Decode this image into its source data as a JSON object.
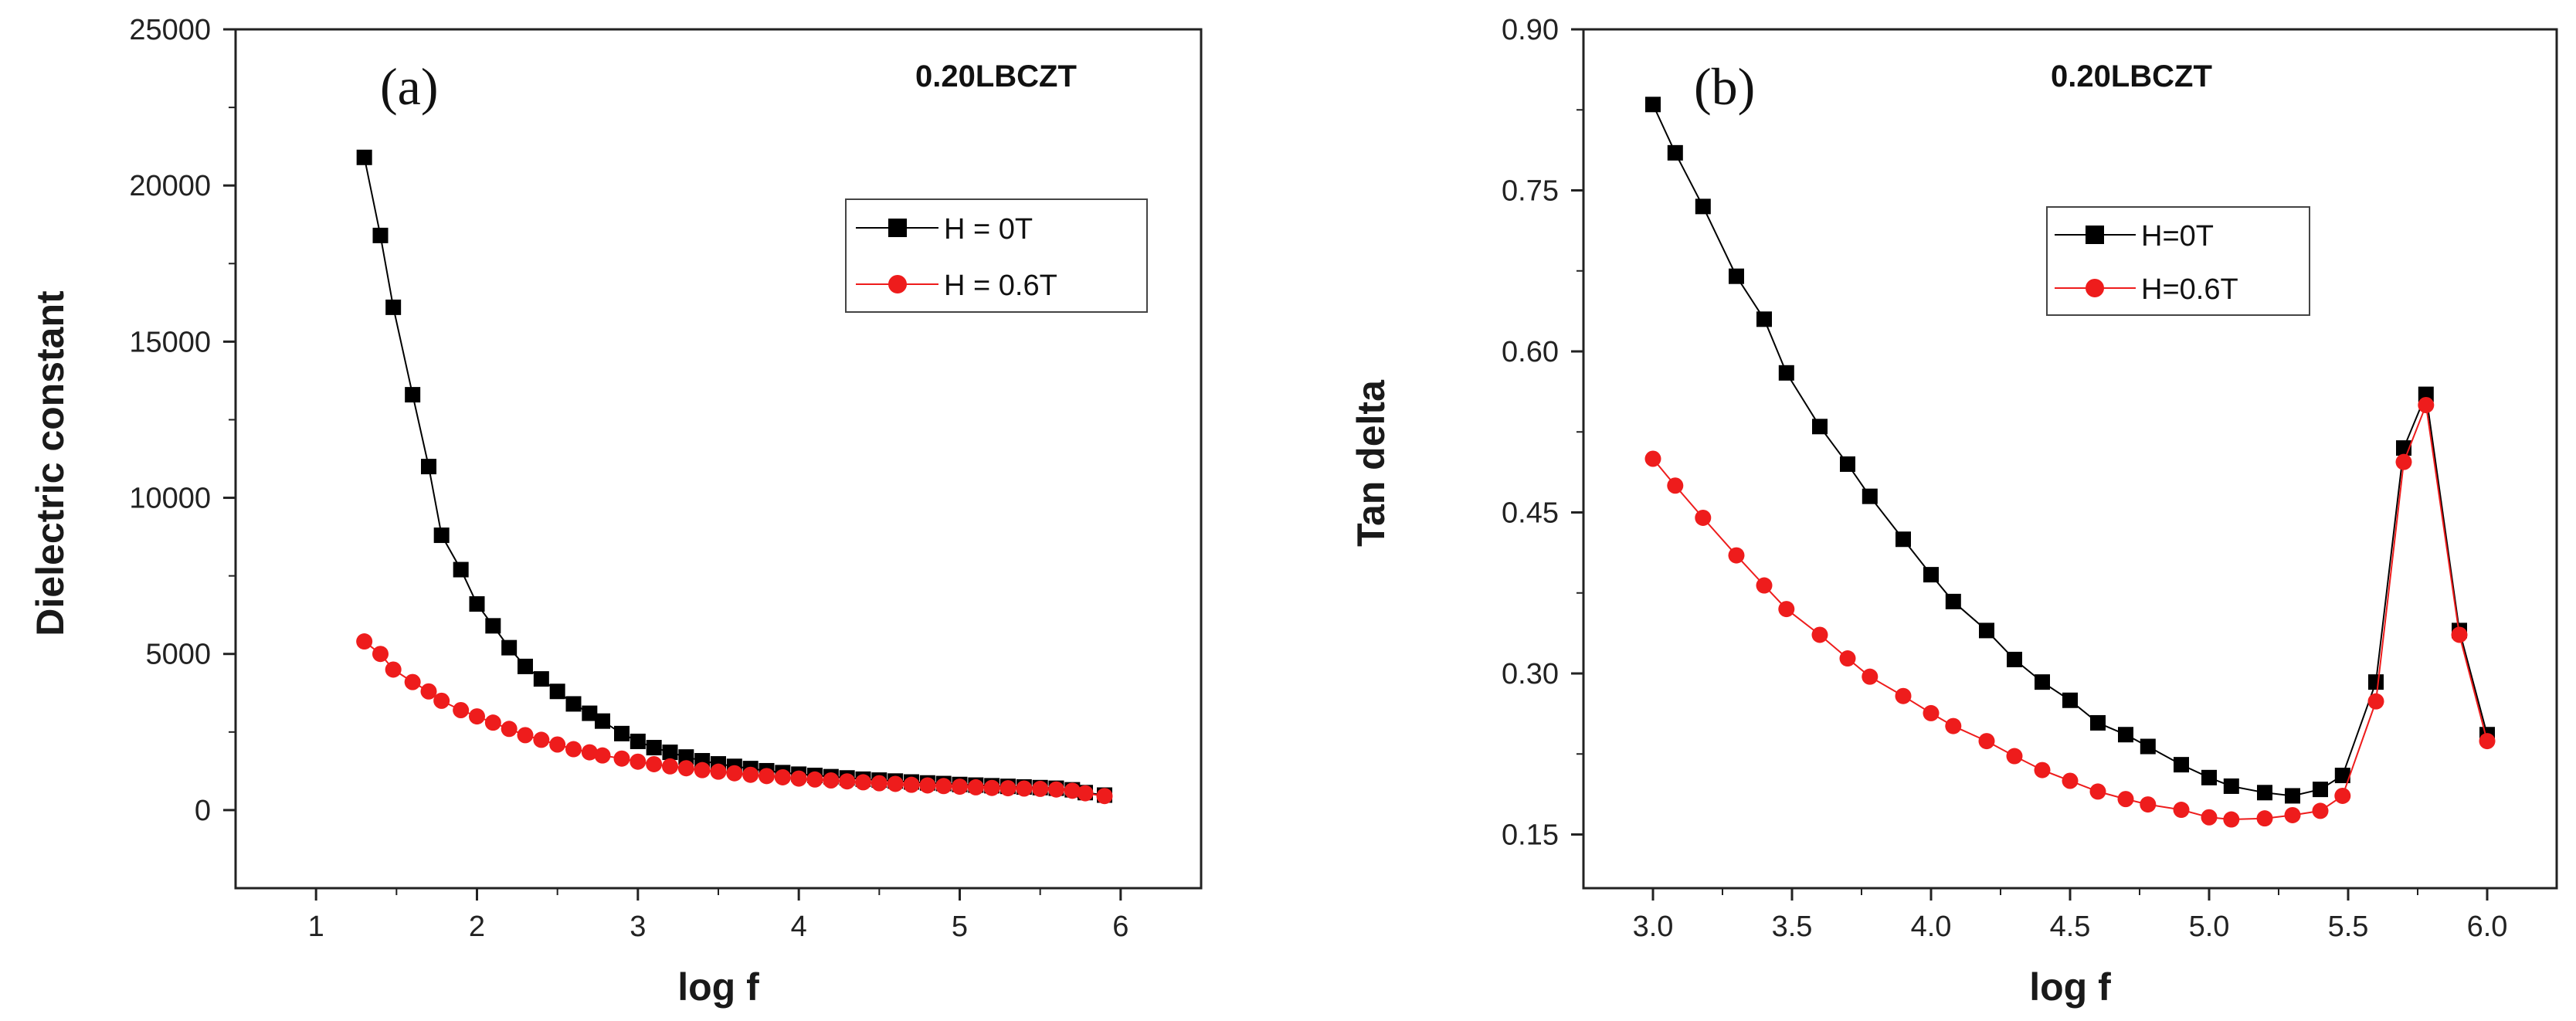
{
  "chart_data": [
    {
      "type": "line",
      "panel_label": "(a)",
      "title": "0.20LBCZT",
      "xlabel": "log f",
      "ylabel": "Dielectric constant",
      "xlim": [
        0.5,
        6.5
      ],
      "ylim": [
        -2500,
        25000
      ],
      "xticks": [
        1,
        2,
        3,
        4,
        5,
        6
      ],
      "xtick_labels": [
        "1",
        "2",
        "3",
        "4",
        "5",
        "6"
      ],
      "yticks": [
        0,
        5000,
        10000,
        15000,
        20000,
        25000
      ],
      "ytick_labels": [
        "0",
        "5000",
        "10000",
        "15000",
        "20000",
        "25000"
      ],
      "legend_position": "upper-right",
      "series": [
        {
          "name": "H = 0T",
          "color": "#000000",
          "marker": "square",
          "x": [
            1.3,
            1.4,
            1.48,
            1.6,
            1.7,
            1.78,
            1.9,
            2.0,
            2.1,
            2.2,
            2.3,
            2.4,
            2.5,
            2.6,
            2.7,
            2.78,
            2.9,
            3.0,
            3.1,
            3.2,
            3.3,
            3.4,
            3.5,
            3.6,
            3.7,
            3.8,
            3.9,
            4.0,
            4.1,
            4.2,
            4.3,
            4.4,
            4.5,
            4.6,
            4.7,
            4.8,
            4.9,
            5.0,
            5.1,
            5.2,
            5.3,
            5.4,
            5.5,
            5.6,
            5.7,
            5.78,
            5.9
          ],
          "values": [
            20900,
            18400,
            16100,
            13300,
            11000,
            8800,
            7700,
            6600,
            5900,
            5200,
            4600,
            4200,
            3800,
            3400,
            3100,
            2850,
            2450,
            2200,
            2000,
            1850,
            1700,
            1580,
            1480,
            1400,
            1330,
            1260,
            1200,
            1150,
            1110,
            1070,
            1030,
            990,
            960,
            930,
            900,
            870,
            850,
            820,
            800,
            780,
            760,
            740,
            720,
            700,
            650,
            560,
            480
          ]
        },
        {
          "name": "H = 0.6T",
          "color": "#ee1c1c",
          "marker": "circle",
          "x": [
            1.3,
            1.4,
            1.48,
            1.6,
            1.7,
            1.78,
            1.9,
            2.0,
            2.1,
            2.2,
            2.3,
            2.4,
            2.5,
            2.6,
            2.7,
            2.78,
            2.9,
            3.0,
            3.1,
            3.2,
            3.3,
            3.4,
            3.5,
            3.6,
            3.7,
            3.8,
            3.9,
            4.0,
            4.1,
            4.2,
            4.3,
            4.4,
            4.5,
            4.6,
            4.7,
            4.8,
            4.9,
            5.0,
            5.1,
            5.2,
            5.3,
            5.4,
            5.5,
            5.6,
            5.7,
            5.78,
            5.9
          ],
          "values": [
            5400,
            5000,
            4500,
            4100,
            3800,
            3500,
            3200,
            3000,
            2800,
            2600,
            2400,
            2250,
            2100,
            1950,
            1850,
            1750,
            1650,
            1550,
            1470,
            1400,
            1340,
            1280,
            1230,
            1180,
            1130,
            1090,
            1050,
            1010,
            980,
            950,
            920,
            890,
            860,
            840,
            810,
            790,
            770,
            750,
            730,
            710,
            700,
            690,
            680,
            660,
            620,
            540,
            450
          ]
        }
      ]
    },
    {
      "type": "line",
      "panel_label": "(b)",
      "title": "0.20LBCZT",
      "xlabel": "log f",
      "ylabel": "Tan delta",
      "xlim": [
        2.75,
        6.25
      ],
      "ylim": [
        0.1,
        0.9
      ],
      "xticks": [
        3.0,
        3.5,
        4.0,
        4.5,
        5.0,
        5.5,
        6.0
      ],
      "xtick_labels": [
        "3.0",
        "3.5",
        "4.0",
        "4.5",
        "5.0",
        "5.5",
        "6.0"
      ],
      "yticks": [
        0.15,
        0.3,
        0.45,
        0.6,
        0.75,
        0.9
      ],
      "ytick_labels": [
        "0.15",
        "0.30",
        "0.45",
        "0.60",
        "0.75",
        "0.90"
      ],
      "legend_position": "upper-right",
      "series": [
        {
          "name": "H=0T",
          "color": "#000000",
          "marker": "square",
          "x": [
            3.0,
            3.08,
            3.18,
            3.3,
            3.4,
            3.48,
            3.6,
            3.7,
            3.78,
            3.9,
            4.0,
            4.08,
            4.2,
            4.3,
            4.4,
            4.5,
            4.6,
            4.7,
            4.78,
            4.9,
            5.0,
            5.08,
            5.2,
            5.3,
            5.4,
            5.48,
            5.6,
            5.7,
            5.78,
            5.9,
            6.0
          ],
          "values": [
            0.83,
            0.785,
            0.735,
            0.67,
            0.63,
            0.58,
            0.53,
            0.495,
            0.465,
            0.425,
            0.392,
            0.367,
            0.34,
            0.313,
            0.292,
            0.275,
            0.254,
            0.243,
            0.232,
            0.215,
            0.203,
            0.195,
            0.189,
            0.186,
            0.192,
            0.205,
            0.292,
            0.51,
            0.56,
            0.34,
            0.243
          ]
        },
        {
          "name": "H=0.6T",
          "color": "#ee1c1c",
          "marker": "circle",
          "x": [
            3.0,
            3.08,
            3.18,
            3.3,
            3.4,
            3.48,
            3.6,
            3.7,
            3.78,
            3.9,
            4.0,
            4.08,
            4.2,
            4.3,
            4.4,
            4.5,
            4.6,
            4.7,
            4.78,
            4.9,
            5.0,
            5.08,
            5.2,
            5.3,
            5.4,
            5.48,
            5.6,
            5.7,
            5.78,
            5.9,
            6.0
          ],
          "values": [
            0.5,
            0.475,
            0.445,
            0.41,
            0.382,
            0.36,
            0.336,
            0.314,
            0.297,
            0.279,
            0.263,
            0.251,
            0.237,
            0.223,
            0.21,
            0.2,
            0.19,
            0.183,
            0.178,
            0.173,
            0.166,
            0.164,
            0.165,
            0.168,
            0.172,
            0.186,
            0.274,
            0.497,
            0.55,
            0.336,
            0.237
          ]
        }
      ]
    }
  ]
}
